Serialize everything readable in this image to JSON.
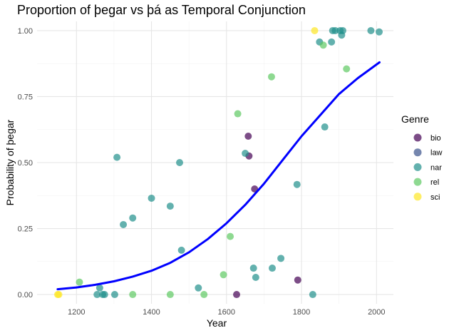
{
  "chart_data": {
    "type": "scatter",
    "title": "Proportion of þegar vs þá as Temporal Conjunction",
    "xlabel": "Year",
    "ylabel": "Probability of þegar",
    "xlim": [
      1095,
      2045
    ],
    "ylim": [
      -0.035,
      1.035
    ],
    "xticks": [
      1200,
      1400,
      1600,
      1800,
      2000
    ],
    "xminor": [
      1300,
      1500,
      1700,
      1900
    ],
    "yticks": [
      0,
      0.25,
      0.5,
      0.75,
      1.0
    ],
    "ytick_labels": [
      "0.00",
      "0.25",
      "0.50",
      "0.75",
      "1.00"
    ],
    "yminor": [
      0.125,
      0.375,
      0.625,
      0.875
    ],
    "grid": true,
    "legend": {
      "title": "Genre",
      "position": "right",
      "entries": [
        {
          "name": "bio",
          "color": "#440154"
        },
        {
          "name": "law",
          "color": "#3b528b"
        },
        {
          "name": "nar",
          "color": "#21908c"
        },
        {
          "name": "rel",
          "color": "#5ec962"
        },
        {
          "name": "sci",
          "color": "#fde725"
        }
      ]
    },
    "point_opacity": 0.7,
    "series": [
      {
        "name": "bio",
        "color": "#440154",
        "points": [
          {
            "x": 1627,
            "y": 0.0
          },
          {
            "x": 1658,
            "y": 0.6
          },
          {
            "x": 1660,
            "y": 0.525
          },
          {
            "x": 1675,
            "y": 0.4
          },
          {
            "x": 1790,
            "y": 0.055
          }
        ]
      },
      {
        "name": "law",
        "color": "#3b528b",
        "points": []
      },
      {
        "name": "nar",
        "color": "#21908c",
        "points": [
          {
            "x": 1255,
            "y": 0.0
          },
          {
            "x": 1262,
            "y": 0.025
          },
          {
            "x": 1270,
            "y": 0.0
          },
          {
            "x": 1275,
            "y": 0.0
          },
          {
            "x": 1302,
            "y": 0.0
          },
          {
            "x": 1308,
            "y": 0.52
          },
          {
            "x": 1325,
            "y": 0.265
          },
          {
            "x": 1350,
            "y": 0.29
          },
          {
            "x": 1400,
            "y": 0.365
          },
          {
            "x": 1450,
            "y": 0.335
          },
          {
            "x": 1475,
            "y": 0.5
          },
          {
            "x": 1480,
            "y": 0.168
          },
          {
            "x": 1525,
            "y": 0.025
          },
          {
            "x": 1650,
            "y": 0.535
          },
          {
            "x": 1672,
            "y": 0.1
          },
          {
            "x": 1678,
            "y": 0.065
          },
          {
            "x": 1722,
            "y": 0.1
          },
          {
            "x": 1745,
            "y": 0.137
          },
          {
            "x": 1788,
            "y": 0.417
          },
          {
            "x": 1830,
            "y": 0.0
          },
          {
            "x": 1848,
            "y": 0.957
          },
          {
            "x": 1862,
            "y": 0.635
          },
          {
            "x": 1880,
            "y": 0.957
          },
          {
            "x": 1883,
            "y": 1.0
          },
          {
            "x": 1890,
            "y": 1.0
          },
          {
            "x": 1903,
            "y": 1.0
          },
          {
            "x": 1907,
            "y": 0.983
          },
          {
            "x": 1910,
            "y": 1.0
          },
          {
            "x": 1985,
            "y": 1.0
          },
          {
            "x": 2007,
            "y": 0.995
          }
        ]
      },
      {
        "name": "rel",
        "color": "#5ec962",
        "points": [
          {
            "x": 1208,
            "y": 0.047
          },
          {
            "x": 1350,
            "y": 0.0
          },
          {
            "x": 1450,
            "y": 0.0
          },
          {
            "x": 1540,
            "y": 0.0
          },
          {
            "x": 1592,
            "y": 0.075
          },
          {
            "x": 1610,
            "y": 0.22
          },
          {
            "x": 1630,
            "y": 0.685
          },
          {
            "x": 1720,
            "y": 0.825
          },
          {
            "x": 1858,
            "y": 0.945
          },
          {
            "x": 1920,
            "y": 0.855
          }
        ]
      },
      {
        "name": "sci",
        "color": "#fde725",
        "points": [
          {
            "x": 1150,
            "y": 0.0
          },
          {
            "x": 1153,
            "y": 0.0
          },
          {
            "x": 1835,
            "y": 1.0
          }
        ]
      }
    ],
    "fit_line": {
      "color": "#0000ff",
      "points": [
        {
          "x": 1150,
          "y": 0.02
        },
        {
          "x": 1200,
          "y": 0.027
        },
        {
          "x": 1250,
          "y": 0.037
        },
        {
          "x": 1300,
          "y": 0.05
        },
        {
          "x": 1350,
          "y": 0.068
        },
        {
          "x": 1400,
          "y": 0.09
        },
        {
          "x": 1450,
          "y": 0.12
        },
        {
          "x": 1500,
          "y": 0.16
        },
        {
          "x": 1550,
          "y": 0.21
        },
        {
          "x": 1600,
          "y": 0.27
        },
        {
          "x": 1650,
          "y": 0.34
        },
        {
          "x": 1700,
          "y": 0.42
        },
        {
          "x": 1750,
          "y": 0.51
        },
        {
          "x": 1800,
          "y": 0.6
        },
        {
          "x": 1850,
          "y": 0.68
        },
        {
          "x": 1900,
          "y": 0.76
        },
        {
          "x": 1950,
          "y": 0.82
        },
        {
          "x": 2008,
          "y": 0.88
        }
      ]
    }
  }
}
